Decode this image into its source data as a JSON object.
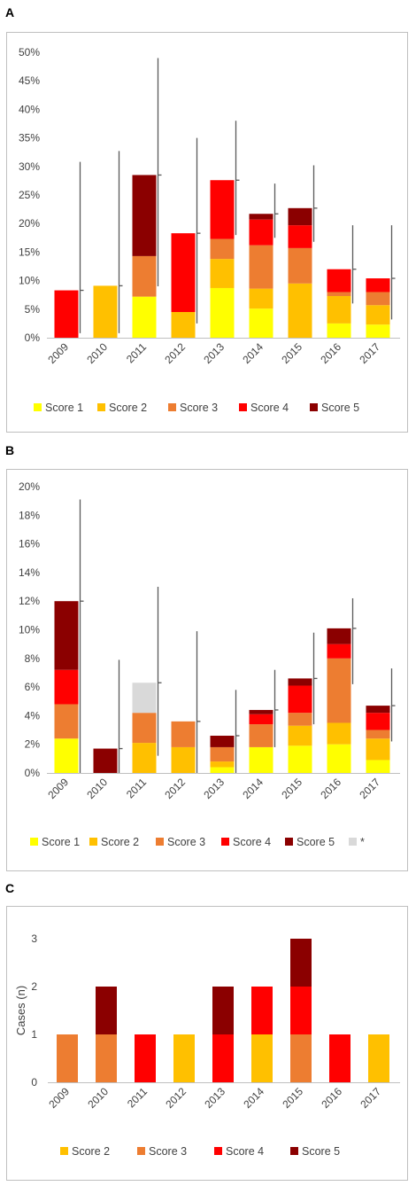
{
  "panels": [
    {
      "letter": "A",
      "chart_data": {
        "type": "bar",
        "stacked": true,
        "categories": [
          "2009",
          "2010",
          "2011",
          "2012",
          "2013",
          "2014",
          "2015",
          "2016",
          "2017"
        ],
        "ylim": [
          0,
          0.5
        ],
        "yticks": [
          "0%",
          "5%",
          "10%",
          "15%",
          "20%",
          "25%",
          "30%",
          "35%",
          "40%",
          "45%",
          "50%"
        ],
        "grid": false,
        "legend_position": "bottom",
        "series": [
          {
            "name": "Score 1",
            "color": "#ffff00",
            "values": [
              0,
              0,
              0.072,
              0,
              0.087,
              0.051,
              0,
              0.025,
              0.023
            ]
          },
          {
            "name": "Score 2",
            "color": "#ffc000",
            "values": [
              0,
              0.091,
              0,
              0.045,
              0.051,
              0.035,
              0.095,
              0.048,
              0.034
            ]
          },
          {
            "name": "Score 3",
            "color": "#ed7d31",
            "values": [
              0,
              0,
              0.071,
              0,
              0.035,
              0.076,
              0.062,
              0.007,
              0.023
            ]
          },
          {
            "name": "Score 4",
            "color": "#ff0000",
            "values": [
              0.083,
              0,
              0,
              0.138,
              0.103,
              0.045,
              0.04,
              0.04,
              0.024
            ]
          },
          {
            "name": "Score 5",
            "color": "#8b0000",
            "values": [
              0,
              0,
              0.142,
              0,
              0,
              0.01,
              0.03,
              0,
              0
            ]
          }
        ],
        "error_bars": [
          [
            0.008,
            0.308
          ],
          [
            0.008,
            0.327
          ],
          [
            0.09,
            0.49
          ],
          [
            0.025,
            0.35
          ],
          [
            0.18,
            0.38
          ],
          [
            0.175,
            0.27
          ],
          [
            0.168,
            0.302
          ],
          [
            0.06,
            0.197
          ],
          [
            0.032,
            0.197
          ]
        ]
      }
    },
    {
      "letter": "B",
      "chart_data": {
        "type": "bar",
        "stacked": true,
        "categories": [
          "2009",
          "2010",
          "2011",
          "2012",
          "2013",
          "2014",
          "2015",
          "2016",
          "2017"
        ],
        "ylim": [
          0,
          0.2
        ],
        "yticks": [
          "0%",
          "2%",
          "4%",
          "6%",
          "8%",
          "10%",
          "12%",
          "14%",
          "16%",
          "18%",
          "20%"
        ],
        "grid": false,
        "legend_position": "bottom",
        "series": [
          {
            "name": "Score 1",
            "color": "#ffff00",
            "values": [
              0.024,
              0,
              0,
              0,
              0.004,
              0.018,
              0.019,
              0.02,
              0.009
            ]
          },
          {
            "name": "Score 2",
            "color": "#ffc000",
            "values": [
              0,
              0,
              0.021,
              0.018,
              0.004,
              0,
              0.014,
              0.015,
              0.015
            ]
          },
          {
            "name": "Score 3",
            "color": "#ed7d31",
            "values": [
              0.024,
              0,
              0.021,
              0.018,
              0.01,
              0.016,
              0.009,
              0.045,
              0.006
            ]
          },
          {
            "name": "Score 4",
            "color": "#ff0000",
            "values": [
              0.024,
              0,
              0,
              0,
              0,
              0.007,
              0.019,
              0.01,
              0.012
            ]
          },
          {
            "name": "Score 5",
            "color": "#8b0000",
            "values": [
              0.048,
              0.017,
              0,
              0,
              0.008,
              0.003,
              0.005,
              0.011,
              0.005
            ]
          },
          {
            "name": "*",
            "color": "#d9d9d9",
            "values": [
              0,
              0,
              0.021,
              0,
              0,
              0,
              0,
              0,
              0
            ]
          }
        ],
        "error_bars": [
          [
            0.0,
            0.191
          ],
          [
            0.0,
            0.079
          ],
          [
            0.012,
            0.13
          ],
          [
            0.0,
            0.099
          ],
          [
            0.0,
            0.058
          ],
          [
            0.018,
            0.072
          ],
          [
            0.034,
            0.098
          ],
          [
            0.062,
            0.122
          ],
          [
            0.022,
            0.073
          ]
        ]
      }
    },
    {
      "letter": "C",
      "chart_data": {
        "type": "bar",
        "stacked": true,
        "categories": [
          "2009",
          "2010",
          "2011",
          "2012",
          "2013",
          "2014",
          "2015",
          "2016",
          "2017"
        ],
        "ylim": [
          0,
          3
        ],
        "yticks": [
          "0",
          "1",
          "2",
          "3"
        ],
        "ylabel": "Cases (n)",
        "grid": false,
        "legend_position": "bottom",
        "series": [
          {
            "name": "Score 2",
            "color": "#ffc000",
            "values": [
              0,
              0,
              0,
              1,
              0,
              1,
              0,
              0,
              1
            ]
          },
          {
            "name": "Score 3",
            "color": "#ed7d31",
            "values": [
              1,
              1,
              0,
              0,
              0,
              0,
              1,
              0,
              0
            ]
          },
          {
            "name": "Score 4",
            "color": "#ff0000",
            "values": [
              0,
              0,
              1,
              0,
              1,
              1,
              1,
              1,
              0
            ]
          },
          {
            "name": "Score 5",
            "color": "#8b0000",
            "values": [
              0,
              1,
              0,
              0,
              1,
              0,
              1,
              0,
              0
            ]
          }
        ]
      }
    }
  ]
}
